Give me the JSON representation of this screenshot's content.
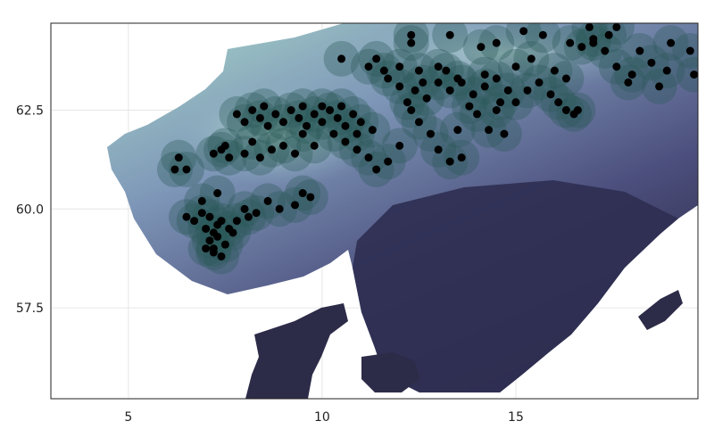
{
  "chart_data": {
    "type": "scatter",
    "title": "",
    "xlabel": "",
    "ylabel": "",
    "xlim": [
      3.0,
      19.7
    ],
    "ylim": [
      55.2,
      64.7
    ],
    "x_ticks": [
      5,
      10,
      15
    ],
    "x_tick_labels": [
      "5",
      "10",
      "15"
    ],
    "y_ticks": [
      57.5,
      60.0,
      62.5
    ],
    "y_tick_labels": [
      "57.5",
      "60.0",
      "62.5"
    ],
    "grid": true,
    "legend": "none",
    "background_layer": "elevation raster (land shaded teal-to-dark navy)",
    "colors": {
      "points": "#000000",
      "buffer": "#2b5a5a",
      "elevation_high": "#a9d8c9",
      "elevation_mid": "#6f7fa8",
      "elevation_low": "#2c2b48",
      "grid": "#e6e6e6",
      "frame": "#222222"
    },
    "series": [
      {
        "points": [
          [
            7.0,
            59.0
          ],
          [
            7.1,
            59.2
          ],
          [
            7.2,
            59.4
          ],
          [
            7.3,
            59.6
          ],
          [
            7.1,
            59.8
          ],
          [
            6.9,
            59.9
          ],
          [
            7.4,
            59.7
          ],
          [
            7.6,
            59.5
          ],
          [
            7.2,
            58.9
          ],
          [
            7.4,
            58.8
          ],
          [
            7.2,
            59.0
          ],
          [
            7.8,
            59.7
          ],
          [
            6.7,
            59.7
          ],
          [
            7.5,
            59.1
          ],
          [
            7.7,
            59.4
          ],
          [
            6.5,
            59.8
          ],
          [
            6.9,
            60.2
          ],
          [
            7.3,
            60.4
          ],
          [
            7.3,
            59.3
          ],
          [
            7.0,
            59.5
          ],
          [
            8.0,
            60.0
          ],
          [
            8.3,
            59.9
          ],
          [
            8.6,
            60.2
          ],
          [
            8.9,
            60.0
          ],
          [
            9.3,
            60.1
          ],
          [
            9.5,
            60.4
          ],
          [
            9.7,
            60.3
          ],
          [
            8.1,
            59.8
          ],
          [
            6.2,
            61.0
          ],
          [
            6.5,
            61.0
          ],
          [
            6.3,
            61.3
          ],
          [
            7.2,
            61.4
          ],
          [
            7.4,
            61.5
          ],
          [
            7.6,
            61.3
          ],
          [
            7.5,
            61.6
          ],
          [
            8.0,
            61.4
          ],
          [
            8.4,
            61.3
          ],
          [
            8.7,
            61.5
          ],
          [
            8.2,
            61.7
          ],
          [
            9.0,
            61.6
          ],
          [
            9.3,
            61.4
          ],
          [
            9.8,
            61.6
          ],
          [
            9.5,
            61.9
          ],
          [
            7.8,
            62.4
          ],
          [
            8.0,
            62.2
          ],
          [
            8.2,
            62.5
          ],
          [
            8.4,
            62.3
          ],
          [
            8.6,
            62.1
          ],
          [
            8.8,
            62.4
          ],
          [
            9.0,
            62.2
          ],
          [
            9.2,
            62.5
          ],
          [
            9.4,
            62.3
          ],
          [
            9.6,
            62.1
          ],
          [
            9.8,
            62.4
          ],
          [
            10.0,
            62.2
          ],
          [
            10.2,
            62.5
          ],
          [
            10.4,
            62.3
          ],
          [
            10.6,
            62.1
          ],
          [
            10.8,
            62.4
          ],
          [
            11.0,
            62.2
          ],
          [
            9.5,
            62.6
          ],
          [
            10.0,
            62.6
          ],
          [
            10.5,
            62.6
          ],
          [
            8.5,
            62.6
          ],
          [
            10.3,
            61.9
          ],
          [
            10.6,
            61.7
          ],
          [
            10.9,
            61.5
          ],
          [
            11.2,
            61.3
          ],
          [
            11.4,
            61.0
          ],
          [
            11.7,
            61.2
          ],
          [
            12.0,
            61.6
          ],
          [
            10.9,
            61.9
          ],
          [
            11.3,
            62.0
          ],
          [
            12.5,
            62.2
          ],
          [
            12.8,
            61.9
          ],
          [
            13.0,
            61.5
          ],
          [
            13.3,
            61.2
          ],
          [
            13.6,
            61.3
          ],
          [
            12.3,
            62.5
          ],
          [
            13.5,
            62.0
          ],
          [
            14.0,
            62.4
          ],
          [
            14.3,
            62.0
          ],
          [
            14.7,
            61.9
          ],
          [
            14.5,
            62.5
          ],
          [
            12.2,
            62.7
          ],
          [
            12.4,
            63.0
          ],
          [
            12.7,
            62.8
          ],
          [
            13.0,
            63.2
          ],
          [
            13.3,
            63.0
          ],
          [
            13.6,
            63.2
          ],
          [
            13.9,
            62.9
          ],
          [
            14.2,
            63.1
          ],
          [
            14.5,
            63.3
          ],
          [
            14.8,
            63.0
          ],
          [
            15.0,
            62.7
          ],
          [
            15.3,
            63.0
          ],
          [
            15.6,
            63.2
          ],
          [
            15.9,
            62.9
          ],
          [
            16.1,
            62.7
          ],
          [
            16.3,
            62.5
          ],
          [
            16.5,
            62.4
          ],
          [
            12.0,
            63.1
          ],
          [
            12.6,
            63.2
          ],
          [
            13.2,
            63.5
          ],
          [
            13.5,
            63.3
          ],
          [
            14.2,
            63.4
          ],
          [
            13.8,
            62.6
          ],
          [
            11.2,
            63.6
          ],
          [
            11.4,
            63.8
          ],
          [
            11.6,
            63.5
          ],
          [
            12.0,
            63.6
          ],
          [
            12.5,
            63.5
          ],
          [
            12.3,
            64.2
          ],
          [
            12.3,
            64.4
          ],
          [
            13.3,
            64.4
          ],
          [
            14.5,
            64.2
          ],
          [
            15.0,
            63.6
          ],
          [
            15.4,
            63.8
          ],
          [
            16.0,
            63.5
          ],
          [
            16.3,
            63.3
          ],
          [
            16.7,
            64.1
          ],
          [
            17.0,
            64.2
          ],
          [
            17.3,
            64.0
          ],
          [
            17.6,
            64.6
          ],
          [
            17.0,
            64.3
          ],
          [
            16.9,
            64.6
          ],
          [
            17.4,
            64.4
          ],
          [
            18.2,
            64.0
          ],
          [
            18.5,
            63.7
          ],
          [
            18.9,
            63.5
          ],
          [
            19.0,
            64.2
          ],
          [
            19.5,
            64.0
          ],
          [
            17.6,
            63.6
          ],
          [
            18.0,
            63.4
          ],
          [
            18.7,
            63.1
          ],
          [
            19.6,
            63.4
          ],
          [
            15.2,
            64.5
          ],
          [
            13.0,
            63.6
          ],
          [
            14.1,
            64.1
          ],
          [
            10.5,
            63.8
          ],
          [
            11.7,
            63.3
          ],
          [
            14.6,
            62.7
          ],
          [
            16.6,
            62.5
          ],
          [
            17.9,
            63.2
          ],
          [
            15.7,
            64.4
          ],
          [
            16.4,
            64.2
          ]
        ]
      }
    ]
  }
}
